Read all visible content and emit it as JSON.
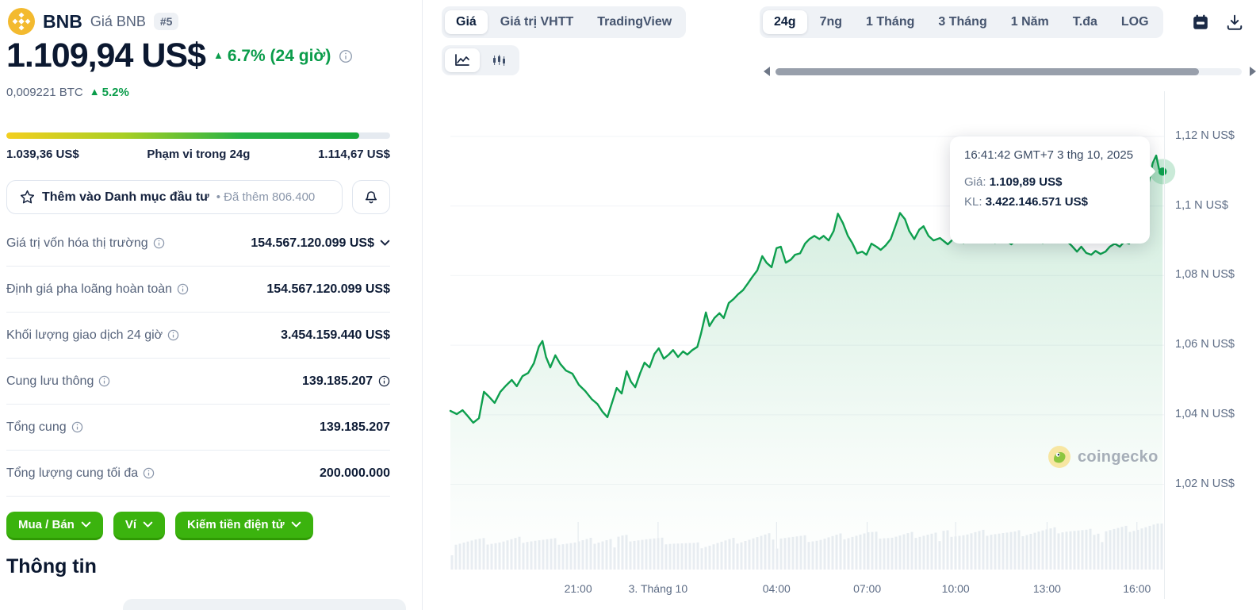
{
  "coin": {
    "symbol": "BNB",
    "subtitle": "Giá BNB",
    "rank_badge": "#5",
    "price": "1.109,94 US$",
    "change_up": "▲",
    "change_pct": "6.7% (24 giờ)",
    "btc_value": "0,009221 BTC",
    "btc_change": "5.2%"
  },
  "range24h": {
    "low": "1.039,36 US$",
    "title": "Phạm vi trong 24g",
    "high": "1.114,67 US$",
    "fill_pct": 92
  },
  "watchlist": {
    "label": "Thêm vào Danh mục đầu tư",
    "separator": "•",
    "added_text": "Đã thêm 806.400"
  },
  "stats": {
    "rows": [
      {
        "label": "Giá trị vốn hóa thị trường",
        "value": "154.567.120.099 US$",
        "trailing": "chevron"
      },
      {
        "label": "Định giá pha loãng hoàn toàn",
        "value": "154.567.120.099 US$",
        "trailing": ""
      },
      {
        "label": "Khối lượng giao dịch 24 giờ",
        "value": "3.454.159.440 US$",
        "trailing": ""
      },
      {
        "label": "Cung lưu thông",
        "value": "139.185.207",
        "trailing": "info"
      },
      {
        "label": "Tổng cung",
        "value": "139.185.207",
        "trailing": ""
      },
      {
        "label": "Tổng lượng cung tối đa",
        "value": "200.000.000",
        "trailing": ""
      }
    ]
  },
  "actions": [
    {
      "label": "Mua / Bán"
    },
    {
      "label": "Ví"
    },
    {
      "label": "Kiếm tiền điện tử"
    }
  ],
  "info_heading": "Thông tin",
  "chart_header": {
    "tabs": [
      {
        "label": "Giá",
        "active": true
      },
      {
        "label": "Giá trị VHTT",
        "active": false
      },
      {
        "label": "TradingView",
        "active": false
      }
    ],
    "ranges": [
      {
        "label": "24g",
        "active": true
      },
      {
        "label": "7ng",
        "active": false
      },
      {
        "label": "1 Tháng",
        "active": false
      },
      {
        "label": "3 Tháng",
        "active": false
      },
      {
        "label": "1 Năm",
        "active": false
      },
      {
        "label": "T.đa",
        "active": false
      },
      {
        "label": "LOG",
        "active": false
      }
    ]
  },
  "tooltip": {
    "timestamp": "16:41:42 GMT+7 3 thg 10, 2025",
    "price_label": "Giá:",
    "price_value": "1.109,89 US$",
    "volume_label": "KL:",
    "volume_value": "3.422.146.571 US$"
  },
  "watermark_text": "coingecko",
  "colors": {
    "accent_green": "#0e9f4e",
    "percent_green": "#0a9c4a",
    "button_green": "#3bb30e",
    "button_green_dark": "#2f9a04",
    "navy": "#0d1f3c",
    "muted": "#56637b",
    "axis_text": "#5d6c85",
    "grid": "#f2f4f7",
    "volume_bar": "#e9edf2",
    "pill_bg": "#eff2f6",
    "bnb_yellow": "#f3ba2f"
  },
  "chart_data": {
    "type": "line",
    "title": "BNB giá 24 giờ",
    "currency": "US$",
    "ylim": [
      995.5,
      1133
    ],
    "grid": true,
    "legend": "none",
    "y_ticks": [
      {
        "value": 1120,
        "label": "1,12 N US$"
      },
      {
        "value": 1100,
        "label": "1,1 N US$"
      },
      {
        "value": 1080,
        "label": "1,08 N US$"
      },
      {
        "value": 1060,
        "label": "1,06 N US$"
      },
      {
        "value": 1040,
        "label": "1,04 N US$"
      },
      {
        "value": 1020,
        "label": "1,02 N US$"
      }
    ],
    "x_ticks": [
      {
        "f": 0.179,
        "label": "21:00"
      },
      {
        "f": 0.291,
        "label": "3. Tháng 10"
      },
      {
        "f": 0.457,
        "label": "04:00"
      },
      {
        "f": 0.584,
        "label": "07:00"
      },
      {
        "f": 0.708,
        "label": "10:00"
      },
      {
        "f": 0.836,
        "label": "13:00"
      },
      {
        "f": 0.962,
        "label": "16:00"
      }
    ],
    "price_series": [
      [
        0.0,
        1041.1
      ],
      [
        0.009,
        1040.2
      ],
      [
        0.017,
        1041.3
      ],
      [
        0.024,
        1039.7
      ],
      [
        0.032,
        1037.7
      ],
      [
        0.04,
        1039.0
      ],
      [
        0.047,
        1046.6
      ],
      [
        0.054,
        1045.2
      ],
      [
        0.062,
        1043.4
      ],
      [
        0.07,
        1046.6
      ],
      [
        0.078,
        1048.4
      ],
      [
        0.086,
        1050.0
      ],
      [
        0.093,
        1048.2
      ],
      [
        0.101,
        1051.1
      ],
      [
        0.109,
        1052.0
      ],
      [
        0.117,
        1054.8
      ],
      [
        0.124,
        1059.6
      ],
      [
        0.129,
        1061.2
      ],
      [
        0.134,
        1056.6
      ],
      [
        0.14,
        1053.6
      ],
      [
        0.147,
        1057.1
      ],
      [
        0.154,
        1054.6
      ],
      [
        0.162,
        1052.7
      ],
      [
        0.171,
        1051.8
      ],
      [
        0.18,
        1048.6
      ],
      [
        0.189,
        1046.8
      ],
      [
        0.198,
        1044.5
      ],
      [
        0.206,
        1043.1
      ],
      [
        0.213,
        1040.9
      ],
      [
        0.22,
        1039.3
      ],
      [
        0.227,
        1043.8
      ],
      [
        0.233,
        1047.7
      ],
      [
        0.24,
        1046.1
      ],
      [
        0.247,
        1052.5
      ],
      [
        0.253,
        1049.5
      ],
      [
        0.259,
        1047.9
      ],
      [
        0.266,
        1052.0
      ],
      [
        0.272,
        1055.0
      ],
      [
        0.279,
        1053.6
      ],
      [
        0.286,
        1057.5
      ],
      [
        0.292,
        1059.1
      ],
      [
        0.299,
        1056.1
      ],
      [
        0.306,
        1057.3
      ],
      [
        0.312,
        1058.6
      ],
      [
        0.319,
        1056.6
      ],
      [
        0.326,
        1058.2
      ],
      [
        0.332,
        1057.3
      ],
      [
        0.339,
        1058.6
      ],
      [
        0.346,
        1059.5
      ],
      [
        0.351,
        1063.2
      ],
      [
        0.358,
        1069.4
      ],
      [
        0.363,
        1065.5
      ],
      [
        0.37,
        1067.8
      ],
      [
        0.377,
        1069.2
      ],
      [
        0.383,
        1067.8
      ],
      [
        0.39,
        1072.1
      ],
      [
        0.397,
        1073.3
      ],
      [
        0.403,
        1074.6
      ],
      [
        0.41,
        1075.8
      ],
      [
        0.417,
        1077.8
      ],
      [
        0.423,
        1079.6
      ],
      [
        0.43,
        1081.5
      ],
      [
        0.437,
        1085.6
      ],
      [
        0.443,
        1083.7
      ],
      [
        0.45,
        1082.4
      ],
      [
        0.457,
        1087.9
      ],
      [
        0.463,
        1088.3
      ],
      [
        0.47,
        1083.7
      ],
      [
        0.477,
        1084.6
      ],
      [
        0.483,
        1086.0
      ],
      [
        0.49,
        1086.4
      ],
      [
        0.497,
        1089.2
      ],
      [
        0.503,
        1090.5
      ],
      [
        0.51,
        1091.4
      ],
      [
        0.517,
        1090.5
      ],
      [
        0.523,
        1091.4
      ],
      [
        0.53,
        1090.1
      ],
      [
        0.537,
        1092.8
      ],
      [
        0.543,
        1097.8
      ],
      [
        0.55,
        1095.1
      ],
      [
        0.557,
        1091.4
      ],
      [
        0.563,
        1089.4
      ],
      [
        0.57,
        1086.4
      ],
      [
        0.577,
        1086.9
      ],
      [
        0.583,
        1086.0
      ],
      [
        0.59,
        1089.2
      ],
      [
        0.597,
        1088.3
      ],
      [
        0.603,
        1087.4
      ],
      [
        0.61,
        1088.7
      ],
      [
        0.617,
        1090.5
      ],
      [
        0.623,
        1093.9
      ],
      [
        0.63,
        1098.0
      ],
      [
        0.637,
        1096.2
      ],
      [
        0.643,
        1092.8
      ],
      [
        0.65,
        1090.5
      ],
      [
        0.657,
        1093.2
      ],
      [
        0.663,
        1094.2
      ],
      [
        0.67,
        1091.4
      ],
      [
        0.677,
        1090.1
      ],
      [
        0.686,
        1090.8
      ],
      [
        0.697,
        1089.0
      ],
      [
        0.708,
        1091.2
      ],
      [
        0.719,
        1089.4
      ],
      [
        0.73,
        1092.1
      ],
      [
        0.741,
        1090.3
      ],
      [
        0.752,
        1091.7
      ],
      [
        0.763,
        1089.4
      ],
      [
        0.774,
        1090.8
      ],
      [
        0.786,
        1089.0
      ],
      [
        0.797,
        1091.2
      ],
      [
        0.808,
        1089.9
      ],
      [
        0.819,
        1091.2
      ],
      [
        0.83,
        1089.4
      ],
      [
        0.841,
        1090.8
      ],
      [
        0.852,
        1089.9
      ],
      [
        0.863,
        1090.1
      ],
      [
        0.871,
        1088.5
      ],
      [
        0.878,
        1086.9
      ],
      [
        0.884,
        1088.3
      ],
      [
        0.891,
        1086.5
      ],
      [
        0.898,
        1086.0
      ],
      [
        0.904,
        1087.1
      ],
      [
        0.911,
        1086.2
      ],
      [
        0.918,
        1086.9
      ],
      [
        0.924,
        1088.3
      ],
      [
        0.931,
        1089.2
      ],
      [
        0.938,
        1088.3
      ],
      [
        0.944,
        1089.7
      ],
      [
        0.951,
        1089.2
      ],
      [
        0.958,
        1091.7
      ],
      [
        0.964,
        1093.5
      ],
      [
        0.971,
        1099.5
      ],
      [
        0.978,
        1106.1
      ],
      [
        0.984,
        1112.3
      ],
      [
        0.989,
        1114.5
      ],
      [
        0.993,
        1110.6
      ],
      [
        0.998,
        1109.9
      ]
    ],
    "last_point": {
      "f": 0.998,
      "price": 1109.89
    },
    "volume_bar_count": 180,
    "volume_profile": [
      34,
      36,
      35,
      38,
      36,
      34,
      37,
      40,
      38,
      35,
      30,
      34,
      38,
      42,
      40,
      38,
      42,
      45,
      41,
      44,
      46,
      44,
      47,
      45,
      48,
      50,
      47,
      50,
      52,
      56
    ]
  }
}
